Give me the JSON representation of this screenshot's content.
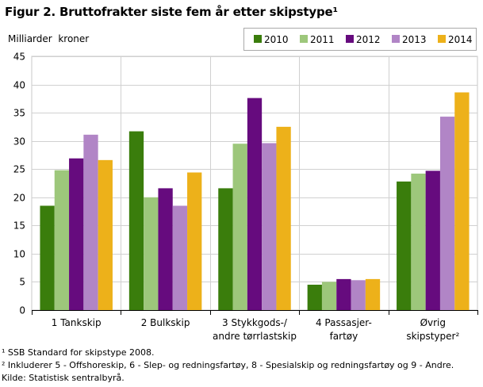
{
  "title": "Figur 2. Bruttofrakter siste fem år etter skipstype¹",
  "chart_data": {
    "type": "bar",
    "title": "Figur 2. Bruttofrakter siste fem år etter skipstype¹",
    "ylabel": "Milliarder  kroner",
    "xlabel": "",
    "ylim": [
      0,
      45
    ],
    "yticks": [
      0,
      5,
      10,
      15,
      20,
      25,
      30,
      35,
      40,
      45
    ],
    "grid": true,
    "legend_position": "top-right",
    "categories": [
      "1 Tankskip",
      "2 Bulkskip",
      "3 Stykkgods-/ andre tørrlastskip",
      "4 Passasjer- fartøy",
      "Øvrig skipstyper²"
    ],
    "category_lines": [
      [
        "1 Tankskip"
      ],
      [
        "2 Bulkskip"
      ],
      [
        "3 Stykkgods-/",
        "andre tørrlastskip"
      ],
      [
        "4 Passasjer-",
        "fartøy"
      ],
      [
        "Øvrig",
        "skipstyper²"
      ]
    ],
    "series": [
      {
        "name": "2010",
        "color": "#3a7d0c",
        "values": [
          18.5,
          31.7,
          21.6,
          4.5,
          22.8
        ]
      },
      {
        "name": "2011",
        "color": "#9dc77b",
        "values": [
          24.8,
          20.0,
          29.5,
          5.0,
          24.2
        ]
      },
      {
        "name": "2012",
        "color": "#660b7e",
        "values": [
          26.9,
          21.6,
          37.6,
          5.5,
          24.7
        ]
      },
      {
        "name": "2013",
        "color": "#b185c6",
        "values": [
          31.1,
          18.5,
          29.6,
          5.3,
          34.3
        ]
      },
      {
        "name": "2014",
        "color": "#edb11a",
        "values": [
          26.6,
          24.4,
          32.5,
          5.5,
          38.6
        ]
      }
    ]
  },
  "notes": [
    "¹ SSB Standard for skipstype 2008.",
    "² Inkluderer 5 - Offshoreskip, 6 - Slep- og redningsfartøy, 8 - Spesialskip og redningsfartøy og 9 - Andre.",
    "Kilde: Statistisk sentralbyrå."
  ]
}
